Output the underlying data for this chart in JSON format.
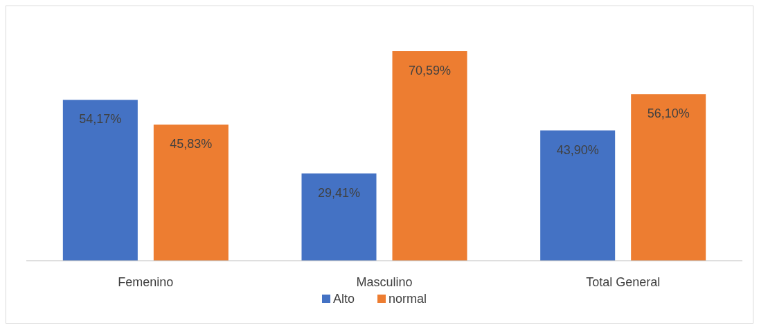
{
  "chart_data": {
    "type": "bar",
    "categories": [
      "Femenino",
      "Masculino",
      "Total General"
    ],
    "series": [
      {
        "name": "Alto",
        "color": "#4472c4",
        "values": [
          54.17,
          29.41,
          43.9
        ],
        "value_labels": [
          "54,17%",
          "29,41%",
          "43,90%"
        ]
      },
      {
        "name": "normal",
        "color": "#ed7d31",
        "values": [
          45.83,
          70.59,
          56.1
        ],
        "value_labels": [
          "45,83%",
          "70,59%",
          "56,10%"
        ]
      }
    ],
    "legend": "bottom"
  }
}
